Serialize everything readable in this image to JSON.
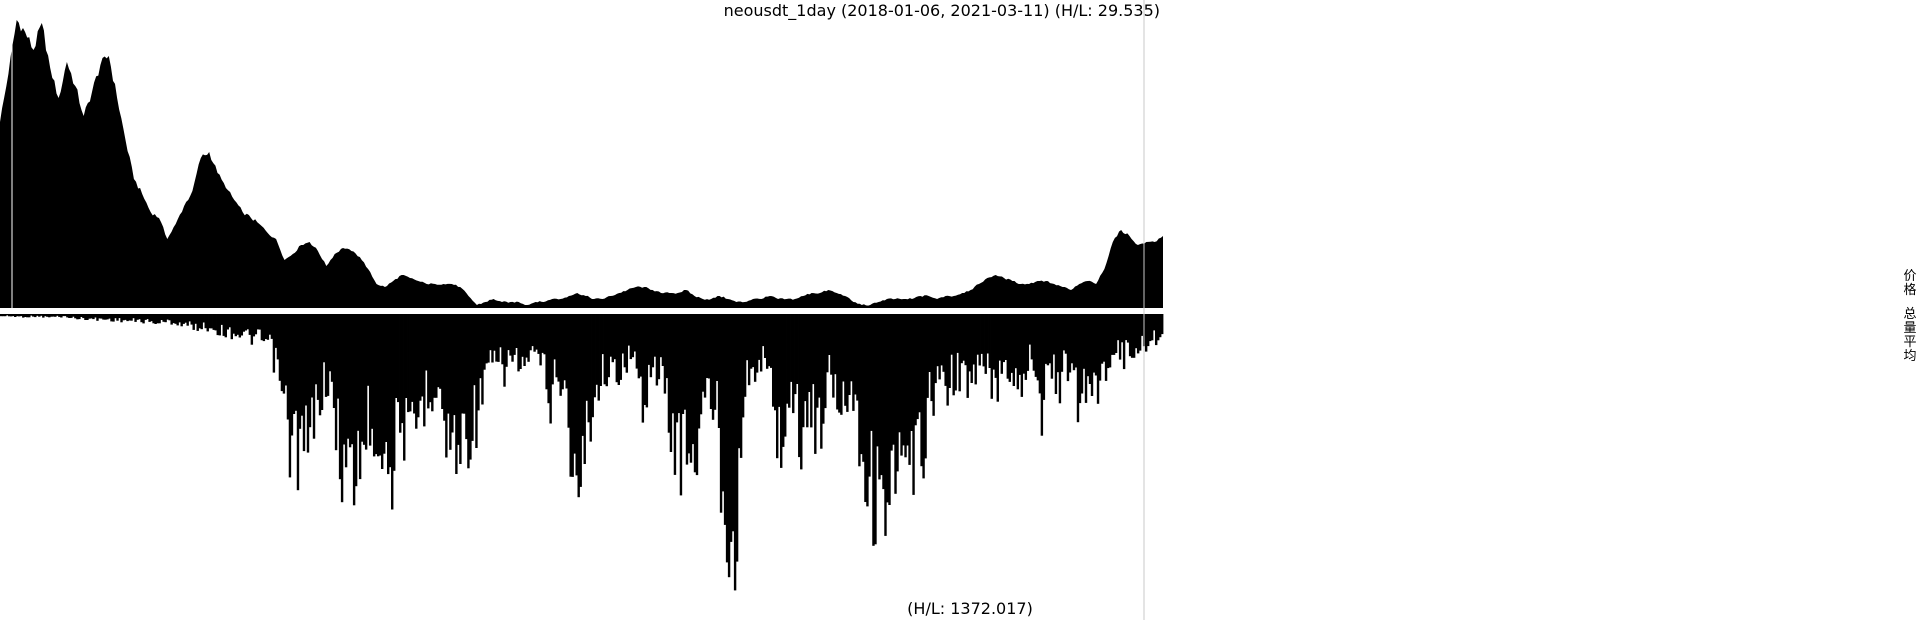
{
  "chart_data": {
    "type": "area",
    "title": "neousdt_1day (2018-01-06, 2021-03-11) (H/L: 29.535)",
    "x_range": [
      "2018-01-06",
      "2021-03-11"
    ],
    "price_hl_ratio": 29.535,
    "volume_label": "(H/L: 1372.017)",
    "volume_hl_ratio": 1372.017,
    "legend": [
      "价格",
      "总量平均"
    ],
    "legend_labels": {
      "price": "价格",
      "volume": "总量平均"
    },
    "colors": {
      "price": "#000000",
      "volume": "#000000",
      "cursor": "#c8c8c8",
      "background": "#ffffff"
    },
    "series": [
      {
        "name": "价格",
        "relative_level": [
          0.62,
          0.78,
          0.96,
          0.92,
          0.86,
          0.95,
          0.8,
          0.7,
          0.82,
          0.74,
          0.64,
          0.72,
          0.81,
          0.84,
          0.7,
          0.56,
          0.43,
          0.38,
          0.32,
          0.3,
          0.23,
          0.28,
          0.34,
          0.39,
          0.5,
          0.52,
          0.45,
          0.4,
          0.36,
          0.32,
          0.3,
          0.28,
          0.25,
          0.23,
          0.16,
          0.18,
          0.21,
          0.22,
          0.19,
          0.14,
          0.18,
          0.2,
          0.19,
          0.17,
          0.13,
          0.08,
          0.07,
          0.09,
          0.11,
          0.1,
          0.09,
          0.08,
          0.08,
          0.08,
          0.08,
          0.07,
          0.04,
          0.01,
          0.02,
          0.03,
          0.02,
          0.02,
          0.02,
          0.01,
          0.02,
          0.02,
          0.03,
          0.03,
          0.04,
          0.05,
          0.04,
          0.03,
          0.03,
          0.04,
          0.05,
          0.06,
          0.07,
          0.07,
          0.06,
          0.05,
          0.05,
          0.05,
          0.06,
          0.04,
          0.03,
          0.03,
          0.04,
          0.03,
          0.02,
          0.02,
          0.03,
          0.03,
          0.04,
          0.03,
          0.03,
          0.03,
          0.04,
          0.05,
          0.05,
          0.06,
          0.05,
          0.04,
          0.02,
          0.01,
          0.01,
          0.02,
          0.03,
          0.03,
          0.03,
          0.03,
          0.04,
          0.04,
          0.03,
          0.04,
          0.04,
          0.05,
          0.06,
          0.08,
          0.1,
          0.11,
          0.1,
          0.09,
          0.08,
          0.08,
          0.09,
          0.09,
          0.08,
          0.07,
          0.06,
          0.08,
          0.09,
          0.08,
          0.13,
          0.22,
          0.26,
          0.24,
          0.21,
          0.22,
          0.22,
          0.24
        ]
      },
      {
        "name": "总量平均",
        "relative_level": [
          0.01,
          0.01,
          0.012,
          0.012,
          0.01,
          0.015,
          0.012,
          0.012,
          0.02,
          0.02,
          0.024,
          0.024,
          0.026,
          0.028,
          0.032,
          0.03,
          0.036,
          0.04,
          0.034,
          0.042,
          0.05,
          0.06,
          0.058,
          0.068,
          0.082,
          0.085,
          0.094,
          0.11,
          0.115,
          0.145,
          0.3,
          0.57,
          0.6,
          0.64,
          0.4,
          0.28,
          0.5,
          0.72,
          0.75,
          0.56,
          0.48,
          0.58,
          0.72,
          0.41,
          0.68,
          0.44,
          0.35,
          0.3,
          0.58,
          0.6,
          0.55,
          0.48,
          0.33,
          0.21,
          0.26,
          0.19,
          0.24,
          0.23,
          0.18,
          0.39,
          0.25,
          0.42,
          0.95,
          0.52,
          0.36,
          0.24,
          0.3,
          0.2,
          0.21,
          0.39,
          0.25,
          0.28,
          0.5,
          0.62,
          0.6,
          0.62,
          0.34,
          0.44,
          0.9,
          1.0,
          0.33,
          0.27,
          0.2,
          0.35,
          0.61,
          0.33,
          0.55,
          0.4,
          0.55,
          0.26,
          0.4,
          0.33,
          0.38,
          0.72,
          0.82,
          0.8,
          0.81,
          0.7,
          0.8,
          0.62,
          0.4,
          0.3,
          0.32,
          0.25,
          0.35,
          0.26,
          0.24,
          0.35,
          0.2,
          0.28,
          0.3,
          0.15,
          0.45,
          0.26,
          0.3,
          0.23,
          0.42,
          0.28,
          0.38,
          0.22,
          0.15,
          0.19,
          0.16,
          0.14,
          0.12,
          0.09
        ]
      }
    ]
  }
}
